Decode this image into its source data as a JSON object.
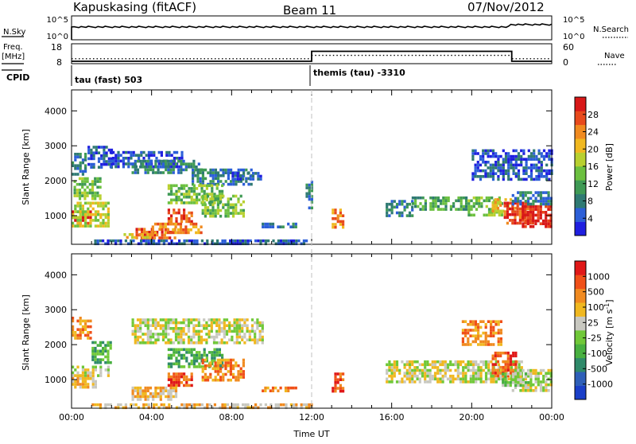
{
  "header": {
    "station": "Kapuskasing (fitACF)",
    "beam": "Beam 11",
    "date": "07/Nov/2012"
  },
  "strip": {
    "nsky_label": "N.Sky",
    "nsky_ticks": [
      "10^5",
      "10^0"
    ],
    "nsearch_label": "N.Search",
    "nsearch_ticks": [
      "10^5",
      "10^0"
    ],
    "freq_label": "Freq.",
    "freq_unit": "[MHz]",
    "freq_ticks": [
      "18",
      "8"
    ],
    "nave_label": "Nave",
    "nave_ticks": [
      "60",
      "0"
    ],
    "cpid_label": "CPID",
    "cpid_segments": [
      {
        "label": "tau (fast) 503",
        "start_h": 0,
        "end_h": 12
      },
      {
        "label": "themis (tau) -3310",
        "start_h": 12,
        "end_h": 24
      }
    ],
    "freq_profile": [
      {
        "t": 0,
        "mhz": 9.4
      },
      {
        "t": 12,
        "mhz": 9.4
      },
      {
        "t": 12,
        "mhz": 14.4
      },
      {
        "t": 22,
        "mhz": 14.4
      },
      {
        "t": 22,
        "mhz": 9.4
      },
      {
        "t": 24,
        "mhz": 9.4
      }
    ],
    "nave_profile": [
      {
        "t": 0,
        "nave": 15
      },
      {
        "t": 12,
        "nave": 15
      },
      {
        "t": 12,
        "nave": 25
      },
      {
        "t": 22,
        "nave": 25
      },
      {
        "t": 22,
        "nave": 15
      },
      {
        "t": 24,
        "nave": 15
      }
    ]
  },
  "chart_data": [
    {
      "type": "heatmap",
      "quantity": "power",
      "ylabel": "Slant Range [km]",
      "xlim": [
        0,
        24
      ],
      "ylim": [
        180,
        4600
      ],
      "yticks": [
        "1000",
        "2000",
        "3000",
        "4000"
      ],
      "colorbar": {
        "label": "Power [dB]",
        "ticks": [
          "4",
          "8",
          "12",
          "16",
          "20",
          "24",
          "28"
        ],
        "colors": [
          "#1f1fe0",
          "#2c5fd8",
          "#2f7a73",
          "#3f9a55",
          "#6cc040",
          "#b8d030",
          "#f0b820",
          "#f08a20",
          "#e84a1c",
          "#d81818"
        ]
      },
      "regions": [
        {
          "t0": 0.0,
          "t1": 1.0,
          "r0": 750,
          "r1": 1150,
          "level": 9
        },
        {
          "t0": 0.0,
          "t1": 1.8,
          "r0": 700,
          "r1": 1400,
          "level": 5
        },
        {
          "t0": 0.1,
          "t1": 1.4,
          "r0": 1500,
          "r1": 2100,
          "level": 4
        },
        {
          "t0": 0.0,
          "t1": 0.7,
          "r0": 2200,
          "r1": 2800,
          "level": 2
        },
        {
          "t0": 0.8,
          "t1": 2.0,
          "r0": 2400,
          "r1": 3000,
          "level": 1
        },
        {
          "t0": 1.9,
          "t1": 5.5,
          "r0": 2400,
          "r1": 2850,
          "level": 1
        },
        {
          "t0": 3.0,
          "t1": 6.5,
          "r0": 2200,
          "r1": 2600,
          "level": 2
        },
        {
          "t0": 6.0,
          "t1": 9.0,
          "r0": 1900,
          "r1": 2350,
          "level": 2
        },
        {
          "t0": 8.0,
          "t1": 9.5,
          "r0": 2050,
          "r1": 2250,
          "level": 1
        },
        {
          "t0": 4.8,
          "t1": 7.5,
          "r0": 1350,
          "r1": 1900,
          "level": 4
        },
        {
          "t0": 6.5,
          "t1": 8.6,
          "r0": 1000,
          "r1": 1600,
          "level": 4
        },
        {
          "t0": 4.8,
          "t1": 6.0,
          "r0": 800,
          "r1": 1200,
          "level": 8
        },
        {
          "t0": 3.2,
          "t1": 5.2,
          "r0": 400,
          "r1": 650,
          "level": 8
        },
        {
          "t0": 4.0,
          "t1": 6.5,
          "r0": 500,
          "r1": 800,
          "level": 7
        },
        {
          "t0": 2.6,
          "t1": 4.0,
          "r0": 350,
          "r1": 500,
          "level": 6
        },
        {
          "t0": 9.5,
          "t1": 11.2,
          "r0": 650,
          "r1": 800,
          "level": 2
        },
        {
          "t0": 1.0,
          "t1": 12.0,
          "r0": 180,
          "r1": 320,
          "level": 1
        },
        {
          "t0": 11.7,
          "t1": 12.0,
          "r0": 1200,
          "r1": 2000,
          "level": 2
        },
        {
          "t0": 13.0,
          "t1": 13.6,
          "r0": 650,
          "r1": 1200,
          "level": 7
        },
        {
          "t0": 15.7,
          "t1": 17.0,
          "r0": 1000,
          "r1": 1450,
          "level": 2
        },
        {
          "t0": 17.0,
          "t1": 19.8,
          "r0": 1150,
          "r1": 1550,
          "level": 3
        },
        {
          "t0": 19.8,
          "t1": 21.5,
          "r0": 1000,
          "r1": 1550,
          "level": 4
        },
        {
          "t0": 21.0,
          "t1": 22.2,
          "r0": 1100,
          "r1": 1500,
          "level": 6
        },
        {
          "t0": 21.6,
          "t1": 23.0,
          "r0": 800,
          "r1": 1400,
          "level": 8
        },
        {
          "t0": 22.5,
          "t1": 24.0,
          "r0": 650,
          "r1": 1300,
          "level": 9
        },
        {
          "t0": 22.0,
          "t1": 24.0,
          "r0": 1300,
          "r1": 1700,
          "level": 2
        },
        {
          "t0": 20.0,
          "t1": 24.0,
          "r0": 2000,
          "r1": 2900,
          "level": 1
        }
      ]
    },
    {
      "type": "heatmap",
      "quantity": "velocity",
      "xlabel": "Time UT",
      "ylabel": "Slant Range [km]",
      "xlim": [
        0,
        24
      ],
      "ylim": [
        180,
        4600
      ],
      "xticks": [
        "00:00",
        "04:00",
        "08:00",
        "12:00",
        "16:00",
        "20:00",
        "00:00"
      ],
      "yticks": [
        "1000",
        "2000",
        "3000",
        "4000"
      ],
      "colorbar": {
        "label": "Velocity [m s^-1]",
        "ticks": [
          "1000",
          "500",
          "100",
          "25",
          "-25",
          "-100",
          "-500",
          "-1000"
        ],
        "colors": [
          "#1a3fc8",
          "#2e5fb8",
          "#2f8a6a",
          "#48b040",
          "#70c838",
          "#c8c8c0",
          "#f0b820",
          "#f08a20",
          "#f05018",
          "#e01818"
        ]
      },
      "regions": [
        {
          "t0": 0.0,
          "t1": 1.2,
          "r0": 750,
          "r1": 1150,
          "level": 6
        },
        {
          "t0": 0.0,
          "t1": 1.8,
          "r0": 1150,
          "r1": 1400,
          "level": 5
        },
        {
          "t0": 0.0,
          "t1": 1.0,
          "r0": 2200,
          "r1": 2800,
          "level": 7
        },
        {
          "t0": 1.0,
          "t1": 2.0,
          "r0": 1500,
          "r1": 2100,
          "level": 3
        },
        {
          "t0": 3.0,
          "t1": 9.5,
          "r0": 2050,
          "r1": 2750,
          "level": 5
        },
        {
          "t0": 4.8,
          "t1": 7.5,
          "r0": 1350,
          "r1": 1900,
          "level": 3
        },
        {
          "t0": 6.5,
          "t1": 8.6,
          "r0": 1000,
          "r1": 1600,
          "level": 7
        },
        {
          "t0": 4.8,
          "t1": 6.0,
          "r0": 800,
          "r1": 1200,
          "level": 8
        },
        {
          "t0": 3.0,
          "t1": 5.2,
          "r0": 400,
          "r1": 800,
          "level": 6
        },
        {
          "t0": 9.5,
          "t1": 11.2,
          "r0": 650,
          "r1": 800,
          "level": 7
        },
        {
          "t0": 1.0,
          "t1": 12.0,
          "r0": 180,
          "r1": 320,
          "level": 6
        },
        {
          "t0": 13.0,
          "t1": 13.6,
          "r0": 650,
          "r1": 1200,
          "level": 8
        },
        {
          "t0": 15.7,
          "t1": 22.5,
          "r0": 900,
          "r1": 1550,
          "level": 5
        },
        {
          "t0": 21.0,
          "t1": 22.2,
          "r0": 1100,
          "r1": 1800,
          "level": 8
        },
        {
          "t0": 22.0,
          "t1": 24.0,
          "r0": 650,
          "r1": 1300,
          "level": 5
        },
        {
          "t0": 21.5,
          "t1": 23.0,
          "r0": 850,
          "r1": 1200,
          "level": 4
        },
        {
          "t0": 19.5,
          "t1": 21.5,
          "r0": 2000,
          "r1": 2700,
          "level": 7
        }
      ]
    }
  ]
}
